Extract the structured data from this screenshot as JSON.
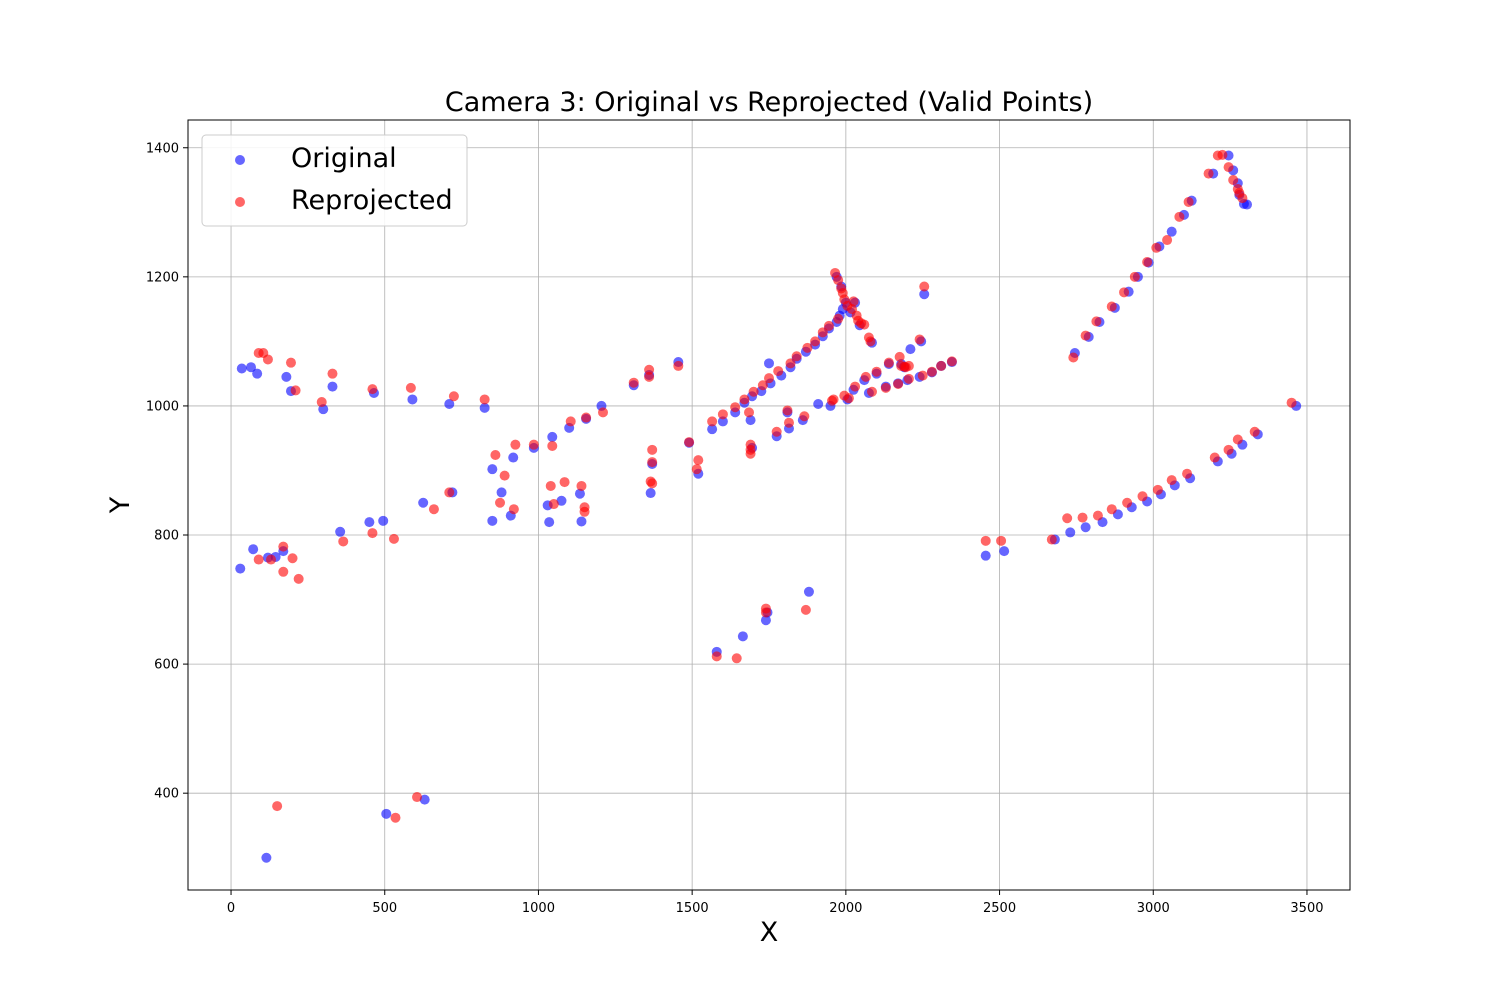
{
  "chart_data": {
    "type": "scatter",
    "title": "Camera 3: Original vs Reprojected (Valid Points)",
    "xlabel": "X",
    "ylabel": "Y",
    "xlim": [
      -140,
      3640
    ],
    "ylim": [
      250,
      1443
    ],
    "xticks": [
      0,
      500,
      1000,
      1500,
      2000,
      2500,
      3000,
      3500
    ],
    "yticks": [
      400,
      600,
      800,
      1000,
      1200,
      1400
    ],
    "grid": true,
    "legend": "top-left",
    "series": [
      {
        "name": "Original",
        "color": "#0000ff",
        "points": [
          [
            30,
            748
          ],
          [
            35,
            1058
          ],
          [
            65,
            1060
          ],
          [
            72,
            778
          ],
          [
            85,
            1050
          ],
          [
            115,
            300
          ],
          [
            120,
            765
          ],
          [
            145,
            766
          ],
          [
            170,
            775
          ],
          [
            180,
            1045
          ],
          [
            195,
            1023
          ],
          [
            300,
            995
          ],
          [
            330,
            1030
          ],
          [
            355,
            805
          ],
          [
            450,
            820
          ],
          [
            465,
            1020
          ],
          [
            495,
            822
          ],
          [
            505,
            368
          ],
          [
            590,
            1010
          ],
          [
            625,
            850
          ],
          [
            630,
            390
          ],
          [
            710,
            1003
          ],
          [
            720,
            866
          ],
          [
            825,
            997
          ],
          [
            850,
            902
          ],
          [
            850,
            822
          ],
          [
            880,
            866
          ],
          [
            910,
            830
          ],
          [
            918,
            920
          ],
          [
            985,
            935
          ],
          [
            1030,
            846
          ],
          [
            1035,
            820
          ],
          [
            1045,
            952
          ],
          [
            1075,
            853
          ],
          [
            1100,
            966
          ],
          [
            1135,
            864
          ],
          [
            1140,
            821
          ],
          [
            1155,
            980
          ],
          [
            1205,
            1000
          ],
          [
            1310,
            1032
          ],
          [
            1360,
            1048
          ],
          [
            1365,
            865
          ],
          [
            1370,
            910
          ],
          [
            1455,
            1068
          ],
          [
            1490,
            943
          ],
          [
            1520,
            895
          ],
          [
            1565,
            964
          ],
          [
            1580,
            619
          ],
          [
            1600,
            976
          ],
          [
            1640,
            990
          ],
          [
            1665,
            643
          ],
          [
            1670,
            1005
          ],
          [
            1690,
            978
          ],
          [
            1695,
            1015
          ],
          [
            1695,
            935
          ],
          [
            1725,
            1023
          ],
          [
            1740,
            668
          ],
          [
            1745,
            680
          ],
          [
            1750,
            1066
          ],
          [
            1755,
            1035
          ],
          [
            1775,
            953
          ],
          [
            1790,
            1047
          ],
          [
            1810,
            990
          ],
          [
            1815,
            965
          ],
          [
            1820,
            1060
          ],
          [
            1840,
            1073
          ],
          [
            1860,
            978
          ],
          [
            1870,
            1084
          ],
          [
            1880,
            712
          ],
          [
            1900,
            1095
          ],
          [
            1910,
            1003
          ],
          [
            1925,
            1108
          ],
          [
            1945,
            1120
          ],
          [
            1950,
            1000
          ],
          [
            1970,
            1130
          ],
          [
            1970,
            1200
          ],
          [
            1980,
            1140
          ],
          [
            1985,
            1185
          ],
          [
            1990,
            1150
          ],
          [
            2000,
            1160
          ],
          [
            2005,
            1010
          ],
          [
            2015,
            1145
          ],
          [
            2025,
            1025
          ],
          [
            2030,
            1160
          ],
          [
            2045,
            1125
          ],
          [
            2060,
            1040
          ],
          [
            2075,
            1020
          ],
          [
            2085,
            1098
          ],
          [
            2100,
            1050
          ],
          [
            2130,
            1030
          ],
          [
            2140,
            1065
          ],
          [
            2170,
            1035
          ],
          [
            2180,
            1065
          ],
          [
            2190,
            1060
          ],
          [
            2200,
            1040
          ],
          [
            2210,
            1088
          ],
          [
            2240,
            1045
          ],
          [
            2245,
            1100
          ],
          [
            2255,
            1173
          ],
          [
            2280,
            1052
          ],
          [
            2310,
            1062
          ],
          [
            2345,
            1068
          ],
          [
            2455,
            768
          ],
          [
            2515,
            775
          ],
          [
            2680,
            793
          ],
          [
            2730,
            804
          ],
          [
            2745,
            1082
          ],
          [
            2780,
            812
          ],
          [
            2790,
            1107
          ],
          [
            2825,
            1130
          ],
          [
            2835,
            820
          ],
          [
            2875,
            1152
          ],
          [
            2885,
            832
          ],
          [
            2920,
            1177
          ],
          [
            2930,
            843
          ],
          [
            2950,
            1200
          ],
          [
            2980,
            852
          ],
          [
            2985,
            1222
          ],
          [
            3020,
            1247
          ],
          [
            3025,
            863
          ],
          [
            3060,
            1270
          ],
          [
            3070,
            877
          ],
          [
            3100,
            1296
          ],
          [
            3120,
            888
          ],
          [
            3125,
            1318
          ],
          [
            3195,
            1360
          ],
          [
            3210,
            914
          ],
          [
            3245,
            1388
          ],
          [
            3255,
            926
          ],
          [
            3260,
            1365
          ],
          [
            3275,
            1345
          ],
          [
            3280,
            1327
          ],
          [
            3290,
            940
          ],
          [
            3295,
            1313
          ],
          [
            3305,
            1312
          ],
          [
            3340,
            956
          ],
          [
            3465,
            1000
          ]
        ]
      },
      {
        "name": "Reprojected",
        "color": "#ff0000",
        "points": [
          [
            90,
            762
          ],
          [
            90,
            1082
          ],
          [
            105,
            1082
          ],
          [
            120,
            1072
          ],
          [
            130,
            762
          ],
          [
            150,
            380
          ],
          [
            170,
            743
          ],
          [
            170,
            782
          ],
          [
            195,
            1067
          ],
          [
            200,
            764
          ],
          [
            210,
            1024
          ],
          [
            220,
            732
          ],
          [
            295,
            1006
          ],
          [
            330,
            1050
          ],
          [
            365,
            790
          ],
          [
            460,
            803
          ],
          [
            460,
            1026
          ],
          [
            530,
            794
          ],
          [
            535,
            362
          ],
          [
            585,
            1028
          ],
          [
            605,
            394
          ],
          [
            660,
            840
          ],
          [
            710,
            866
          ],
          [
            725,
            1015
          ],
          [
            825,
            1010
          ],
          [
            860,
            924
          ],
          [
            875,
            850
          ],
          [
            890,
            892
          ],
          [
            920,
            840
          ],
          [
            925,
            940
          ],
          [
            985,
            940
          ],
          [
            1040,
            876
          ],
          [
            1045,
            938
          ],
          [
            1050,
            848
          ],
          [
            1085,
            882
          ],
          [
            1105,
            976
          ],
          [
            1140,
            876
          ],
          [
            1150,
            843
          ],
          [
            1150,
            836
          ],
          [
            1155,
            982
          ],
          [
            1210,
            990
          ],
          [
            1310,
            1036
          ],
          [
            1360,
            1045
          ],
          [
            1360,
            1056
          ],
          [
            1365,
            883
          ],
          [
            1370,
            880
          ],
          [
            1370,
            913
          ],
          [
            1370,
            932
          ],
          [
            1455,
            1062
          ],
          [
            1490,
            944
          ],
          [
            1515,
            902
          ],
          [
            1520,
            916
          ],
          [
            1565,
            976
          ],
          [
            1580,
            612
          ],
          [
            1600,
            987
          ],
          [
            1640,
            998
          ],
          [
            1645,
            609
          ],
          [
            1670,
            1010
          ],
          [
            1685,
            990
          ],
          [
            1690,
            940
          ],
          [
            1690,
            932
          ],
          [
            1690,
            926
          ],
          [
            1700,
            1022
          ],
          [
            1730,
            1032
          ],
          [
            1740,
            686
          ],
          [
            1740,
            680
          ],
          [
            1750,
            1043
          ],
          [
            1775,
            960
          ],
          [
            1780,
            1054
          ],
          [
            1810,
            993
          ],
          [
            1815,
            974
          ],
          [
            1820,
            1066
          ],
          [
            1840,
            1077
          ],
          [
            1865,
            984
          ],
          [
            1870,
            684
          ],
          [
            1875,
            1090
          ],
          [
            1900,
            1100
          ],
          [
            1925,
            1114
          ],
          [
            1945,
            1124
          ],
          [
            1955,
            1008
          ],
          [
            1960,
            1010
          ],
          [
            1965,
            1206
          ],
          [
            1975,
            1135
          ],
          [
            1975,
            1195
          ],
          [
            1985,
            1182
          ],
          [
            1990,
            1175
          ],
          [
            1995,
            1165
          ],
          [
            1995,
            1016
          ],
          [
            2005,
            1155
          ],
          [
            2010,
            1012
          ],
          [
            2020,
            1150
          ],
          [
            2025,
            1162
          ],
          [
            2030,
            1030
          ],
          [
            2035,
            1140
          ],
          [
            2040,
            1132
          ],
          [
            2050,
            1128
          ],
          [
            2060,
            1126
          ],
          [
            2065,
            1045
          ],
          [
            2075,
            1106
          ],
          [
            2080,
            1100
          ],
          [
            2085,
            1022
          ],
          [
            2100,
            1053
          ],
          [
            2130,
            1028
          ],
          [
            2140,
            1067
          ],
          [
            2170,
            1034
          ],
          [
            2175,
            1076
          ],
          [
            2180,
            1062
          ],
          [
            2190,
            1061
          ],
          [
            2195,
            1060
          ],
          [
            2205,
            1062
          ],
          [
            2205,
            1042
          ],
          [
            2240,
            1103
          ],
          [
            2250,
            1047
          ],
          [
            2255,
            1185
          ],
          [
            2280,
            1053
          ],
          [
            2310,
            1062
          ],
          [
            2345,
            1069
          ],
          [
            2455,
            791
          ],
          [
            2505,
            791
          ],
          [
            2670,
            793
          ],
          [
            2720,
            826
          ],
          [
            2740,
            1075
          ],
          [
            2770,
            827
          ],
          [
            2780,
            1109
          ],
          [
            2815,
            1131
          ],
          [
            2820,
            830
          ],
          [
            2865,
            840
          ],
          [
            2865,
            1154
          ],
          [
            2905,
            1176
          ],
          [
            2915,
            850
          ],
          [
            2940,
            1200
          ],
          [
            2965,
            860
          ],
          [
            2980,
            1223
          ],
          [
            3010,
            1245
          ],
          [
            3015,
            870
          ],
          [
            3045,
            1257
          ],
          [
            3060,
            885
          ],
          [
            3085,
            1293
          ],
          [
            3110,
            895
          ],
          [
            3115,
            1316
          ],
          [
            3180,
            1360
          ],
          [
            3200,
            920
          ],
          [
            3210,
            1388
          ],
          [
            3225,
            1389
          ],
          [
            3245,
            932
          ],
          [
            3245,
            1370
          ],
          [
            3260,
            1350
          ],
          [
            3275,
            1336
          ],
          [
            3275,
            948
          ],
          [
            3280,
            1330
          ],
          [
            3290,
            1322
          ],
          [
            3330,
            960
          ],
          [
            3450,
            1005
          ]
        ]
      }
    ]
  }
}
